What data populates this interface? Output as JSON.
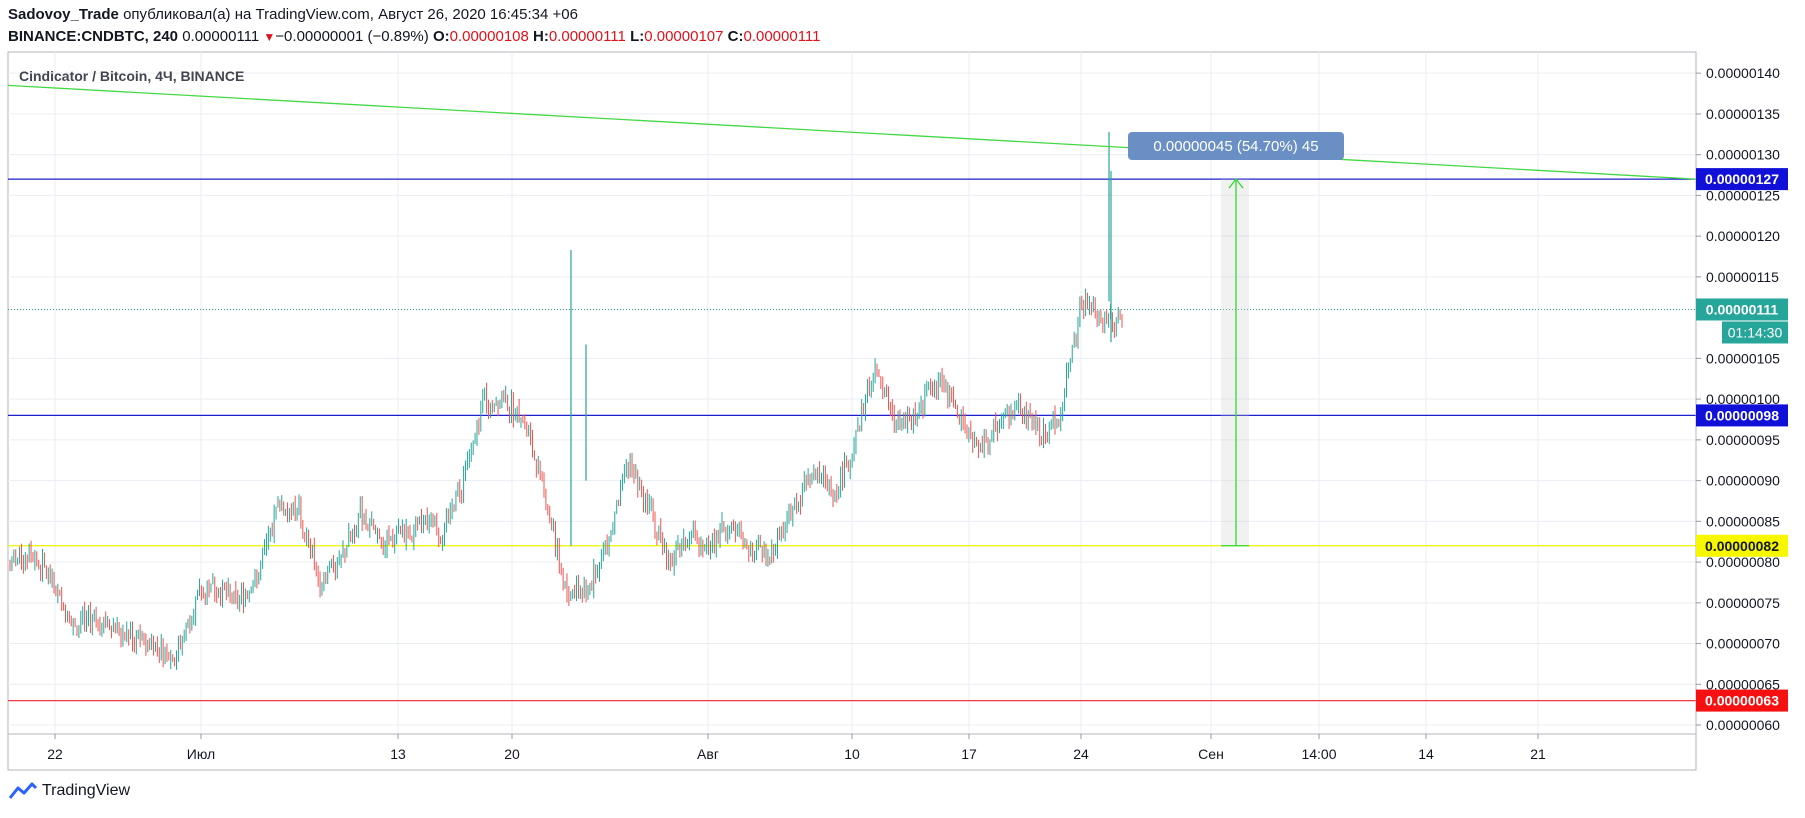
{
  "header": {
    "author": "Sadovoy_Trade",
    "published_text": "опубликовал(а) на TradingView.com, Август 26, 2020 16:45:34 +06",
    "symbol": "BINANCE:CNDBTC, 240",
    "last_price": "0.00000111",
    "change_arrow": "▼",
    "change": "−0.00000001 (−0.89%)",
    "o_label": "O:",
    "o_value": "0.00000108",
    "h_label": "H:",
    "h_value": "0.00000111",
    "l_label": "L:",
    "l_value": "0.00000107",
    "c_label": "C:",
    "c_value": "0.00000111"
  },
  "footer": {
    "brand": "TradingView"
  },
  "colors": {
    "up": "#26a69a",
    "down": "#ef5350",
    "grid": "#e9eef2",
    "blue_line": "#1f1fcf",
    "yellow_line": "#f0f000",
    "red_line": "#f23645",
    "trend_line": "#45d845",
    "measure": "#34d834"
  },
  "chart_data": {
    "type": "candlestick",
    "title": "Cindicator / Bitcoin, 4Ч, BINANCE",
    "y_axis": {
      "ticks": [
        "0.00000140",
        "0.00000135",
        "0.00000130",
        "0.00000125",
        "0.00000120",
        "0.00000115",
        "0.00000105",
        "0.00000100",
        "0.00000095",
        "0.00000090",
        "0.00000085",
        "0.00000080",
        "0.00000075",
        "0.00000070",
        "0.00000065",
        "0.00000060"
      ],
      "ylim": [
        5.89e-07,
        1.426e-06
      ]
    },
    "x_axis": {
      "ticks": [
        "22",
        "Июл",
        "13",
        "20",
        "Авг",
        "10",
        "17",
        "24",
        "Сен",
        "14:00",
        "14",
        "21"
      ]
    },
    "horizontal_levels": [
      {
        "price": 1.27e-06,
        "label": "0.00000127",
        "color": "#1f1fcf"
      },
      {
        "price": 9.8e-07,
        "label": "0.00000098",
        "color": "#1f1fcf"
      },
      {
        "price": 8.2e-07,
        "label": "0.00000082",
        "color": "#f0f000"
      },
      {
        "price": 6.3e-07,
        "label": "0.00000063",
        "color": "#f23645"
      }
    ],
    "current_price": {
      "price": 1.11e-06,
      "label": "0.00000111",
      "countdown": "01:14:30"
    },
    "trend_line": {
      "from_price": 1.385e-06,
      "to_price": 1.27e-06
    },
    "measure": {
      "from_price": 8.2e-07,
      "to_price": 1.27e-06,
      "label": "0.00000045 (54.70%) 45"
    },
    "ohlc_path": [
      [
        8e-07,
        7.8e-07
      ],
      [
        8.1e-07,
        7.7e-07
      ],
      [
        7.8e-07,
        7.5e-07
      ],
      [
        7.2e-07,
        6.8e-07
      ],
      [
        7.3e-07,
        7.1e-07
      ],
      [
        7.2e-07,
        7e-07
      ],
      [
        7.1e-07,
        6.9e-07
      ],
      [
        7e-07,
        6.6e-07
      ],
      [
        6.8e-07,
        7.2e-07
      ],
      [
        7.5e-07,
        7.8e-07
      ],
      [
        7.7e-07,
        7.4e-07
      ],
      [
        7.5e-07,
        7.2e-07
      ],
      [
        7.8e-07,
        8.3e-07
      ],
      [
        8.7e-07,
        8.5e-07
      ],
      [
        8.6e-07,
        8.2e-07
      ],
      [
        7.8e-07,
        7.5e-07
      ],
      [
        8e-07,
        8.4e-07
      ],
      [
        8.6e-07,
        8.2e-07
      ],
      [
        8.2e-07,
        7.9e-07
      ],
      [
        8.3e-07,
        8.6e-07
      ],
      [
        8.5e-07,
        8.3e-07
      ],
      [
        8.4e-07,
        8.6e-07
      ],
      [
        9e-07,
        8.8e-07
      ],
      [
        1e-06,
        1.05e-06
      ],
      [
        1e-06,
        9.5e-07
      ],
      [
        9.7e-07,
        9e-07
      ],
      [
        8.8e-07,
        8e-07
      ],
      [
        7.6e-07,
        7.4e-07
      ],
      [
        7.7e-07,
        7.9e-07
      ],
      [
        8.2e-07,
        8.5e-07
      ],
      [
        9.2e-07,
        9e-07
      ],
      [
        8.7e-07,
        8.3e-07
      ],
      [
        8e-07,
        8.2e-07
      ],
      [
        8.3e-07,
        8.1e-07
      ],
      [
        8.2e-07,
        8.4e-07
      ],
      [
        8.5e-07,
        8.3e-07
      ],
      [
        8.1e-07,
        8e-07
      ],
      [
        8.1e-07,
        8.3e-07
      ],
      [
        8.7e-07,
        9e-07
      ],
      [
        9.1e-07,
        8.7e-07
      ],
      [
        8.8e-07,
        8.6e-07
      ],
      [
        9.5e-07,
        1e-06
      ],
      [
        1.04e-06,
        1e-06
      ],
      [
        9.7e-07,
        9.4e-07
      ],
      [
        9.8e-07,
        1e-06
      ],
      [
        1.03e-06,
        1.02e-06
      ],
      [
        9.9e-07,
        9.6e-07
      ],
      [
        9.4e-07,
        9.3e-07
      ],
      [
        9.7e-07,
        1e-06
      ],
      [
        9.9e-07,
        9.7e-07
      ],
      [
        9.6e-07,
        9.7e-07
      ],
      [
        9.8e-07,
        1.08e-06
      ],
      [
        1.12e-06,
        1.13e-06
      ],
      [
        1.1e-06,
        1.09e-06
      ],
      [
        1.1e-06,
        1.11e-06
      ]
    ]
  }
}
